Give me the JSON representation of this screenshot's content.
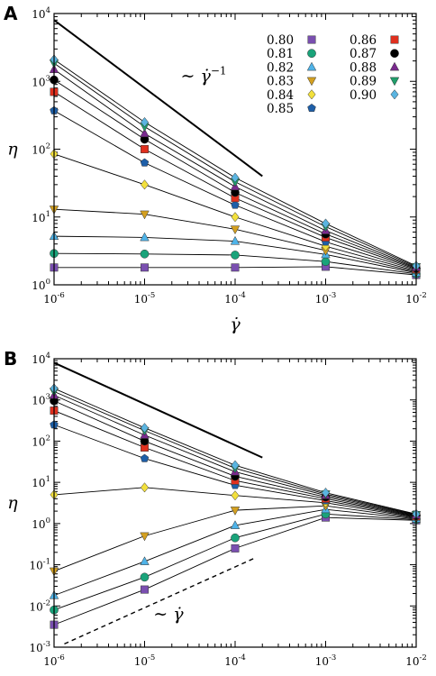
{
  "chart_data": [
    {
      "panel_label": "A",
      "type": "line",
      "x_scale": "log",
      "y_scale": "log",
      "xlim": [
        1e-06,
        0.01
      ],
      "ylim": [
        1,
        10000
      ],
      "x_ticks": [
        {
          "base": "10",
          "exp": "-6",
          "value": 1e-06
        },
        {
          "base": "10",
          "exp": "-5",
          "value": 1e-05
        },
        {
          "base": "10",
          "exp": "-4",
          "value": 0.0001
        },
        {
          "base": "10",
          "exp": "-3",
          "value": 0.001
        },
        {
          "base": "10",
          "exp": "-2",
          "value": 0.01
        }
      ],
      "y_ticks": [
        {
          "base": "10",
          "exp": "0",
          "value": 1
        },
        {
          "base": "10",
          "exp": "1",
          "value": 10
        },
        {
          "base": "10",
          "exp": "2",
          "value": 100
        },
        {
          "base": "10",
          "exp": "3",
          "value": 1000
        },
        {
          "base": "10",
          "exp": "4",
          "value": 10000
        }
      ],
      "xlabel": "γ̇",
      "ylabel": "η",
      "legend_position": "top-right",
      "x": [
        1e-06,
        1e-05,
        0.0001,
        0.001,
        0.01
      ],
      "series": [
        {
          "name": "0.80",
          "color": "#7a4fb0",
          "marker": "square",
          "values": [
            1.8,
            1.8,
            1.8,
            1.85,
            1.4
          ]
        },
        {
          "name": "0.81",
          "color": "#1aa37a",
          "marker": "circle",
          "values": [
            2.9,
            2.85,
            2.75,
            2.2,
            1.45
          ]
        },
        {
          "name": "0.82",
          "color": "#4fb3e8",
          "marker": "triangle-up",
          "values": [
            5.2,
            5.0,
            4.4,
            2.8,
            1.5
          ]
        },
        {
          "name": "0.83",
          "color": "#d4a020",
          "marker": "triangle-down",
          "values": [
            13,
            11,
            6.6,
            3.2,
            1.55
          ]
        },
        {
          "name": "0.84",
          "color": "#f2e03c",
          "marker": "diamond",
          "values": [
            85,
            30,
            10,
            3.7,
            1.6
          ]
        },
        {
          "name": "0.85",
          "color": "#1e5fa8",
          "marker": "pentagon",
          "values": [
            370,
            63,
            15,
            4.3,
            1.65
          ]
        },
        {
          "name": "0.86",
          "color": "#e0301e",
          "marker": "square",
          "values": [
            700,
            100,
            19,
            5.0,
            1.7
          ]
        },
        {
          "name": "0.87",
          "color": "#000000",
          "marker": "circle",
          "values": [
            1050,
            140,
            23,
            5.6,
            1.75
          ]
        },
        {
          "name": "0.88",
          "color": "#7a2a8e",
          "marker": "triangle-up",
          "values": [
            1500,
            170,
            28,
            6.3,
            1.8
          ]
        },
        {
          "name": "0.89",
          "color": "#1f9e6a",
          "marker": "triangle-down",
          "values": [
            1850,
            215,
            33,
            7.2,
            1.85
          ]
        },
        {
          "name": "0.90",
          "color": "#5ab4e0",
          "marker": "diamond",
          "values": [
            2100,
            250,
            38,
            8.0,
            1.9
          ]
        }
      ],
      "guide_lines": [
        {
          "style": "solid",
          "x": [
            1e-06,
            0.0002
          ],
          "y": [
            8000,
            40
          ]
        }
      ],
      "annotation": {
        "prefix": "∼ ",
        "symbol": "γ̇",
        "exp": "−1",
        "x": 2.5e-05,
        "y": 1000
      }
    },
    {
      "panel_label": "B",
      "type": "line",
      "x_scale": "log",
      "y_scale": "log",
      "xlim": [
        1e-06,
        0.01
      ],
      "ylim": [
        0.001,
        10000
      ],
      "x_ticks": [
        {
          "base": "10",
          "exp": "-6",
          "value": 1e-06
        },
        {
          "base": "10",
          "exp": "-5",
          "value": 1e-05
        },
        {
          "base": "10",
          "exp": "-4",
          "value": 0.0001
        },
        {
          "base": "10",
          "exp": "-3",
          "value": 0.001
        },
        {
          "base": "10",
          "exp": "-2",
          "value": 0.01
        }
      ],
      "y_ticks": [
        {
          "base": "10",
          "exp": "-3",
          "value": 0.001
        },
        {
          "base": "10",
          "exp": "-2",
          "value": 0.01
        },
        {
          "base": "10",
          "exp": "-1",
          "value": 0.1
        },
        {
          "base": "10",
          "exp": "0",
          "value": 1
        },
        {
          "base": "10",
          "exp": "1",
          "value": 10
        },
        {
          "base": "10",
          "exp": "2",
          "value": 100
        },
        {
          "base": "10",
          "exp": "3",
          "value": 1000
        },
        {
          "base": "10",
          "exp": "4",
          "value": 10000
        }
      ],
      "xlabel": "γ̇",
      "ylabel": "η",
      "x": [
        1e-06,
        1e-05,
        0.0001,
        0.001,
        0.01
      ],
      "series": [
        {
          "name": "0.80",
          "color": "#7a4fb0",
          "marker": "square",
          "values": [
            0.0035,
            0.025,
            0.25,
            1.4,
            1.2
          ]
        },
        {
          "name": "0.81",
          "color": "#1aa37a",
          "marker": "circle",
          "values": [
            0.008,
            0.05,
            0.45,
            1.7,
            1.25
          ]
        },
        {
          "name": "0.82",
          "color": "#4fb3e8",
          "marker": "triangle-up",
          "values": [
            0.018,
            0.12,
            0.9,
            2.2,
            1.3
          ]
        },
        {
          "name": "0.83",
          "color": "#d4a020",
          "marker": "triangle-down",
          "values": [
            0.07,
            0.5,
            2.1,
            2.7,
            1.35
          ]
        },
        {
          "name": "0.84",
          "color": "#f2e03c",
          "marker": "diamond",
          "values": [
            5,
            7.5,
            4.8,
            3.2,
            1.4
          ]
        },
        {
          "name": "0.85",
          "color": "#1e5fa8",
          "marker": "pentagon",
          "values": [
            250,
            38,
            8.5,
            3.6,
            1.45
          ]
        },
        {
          "name": "0.86",
          "color": "#e0301e",
          "marker": "square",
          "values": [
            550,
            70,
            11,
            4.0,
            1.5
          ]
        },
        {
          "name": "0.87",
          "color": "#000000",
          "marker": "circle",
          "values": [
            950,
            100,
            14,
            4.4,
            1.55
          ]
        },
        {
          "name": "0.88",
          "color": "#7a2a8e",
          "marker": "triangle-up",
          "values": [
            1300,
            140,
            18,
            4.8,
            1.6
          ]
        },
        {
          "name": "0.89",
          "color": "#1f9e6a",
          "marker": "triangle-down",
          "values": [
            1600,
            180,
            22,
            5.2,
            1.65
          ]
        },
        {
          "name": "0.90",
          "color": "#5ab4e0",
          "marker": "diamond",
          "values": [
            1900,
            210,
            26,
            5.6,
            1.7
          ]
        }
      ],
      "guide_lines": [
        {
          "style": "solid",
          "x": [
            1e-06,
            0.0002
          ],
          "y": [
            8000,
            40
          ]
        },
        {
          "style": "dashed",
          "x": [
            1.3e-06,
            0.00017
          ],
          "y": [
            0.0012,
            0.15
          ]
        }
      ],
      "annotation": {
        "prefix": "∼ ",
        "symbol": "γ̇",
        "exp": "",
        "x": 1.25e-05,
        "y": 0.0047
      }
    }
  ]
}
